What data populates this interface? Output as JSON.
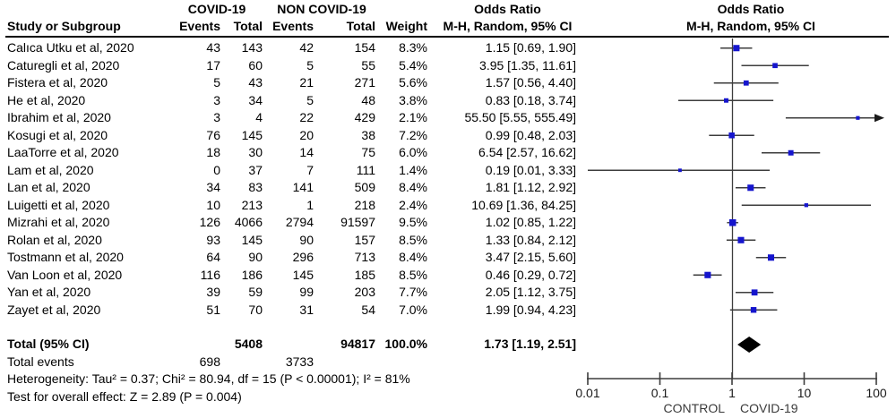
{
  "header": {
    "study_col": "Study or Subgroup",
    "group1": "COVID-19",
    "group2": "NON COVID-19",
    "events1": "Events",
    "total1": "Total",
    "events2": "Events",
    "total2": "Total",
    "weight": "Weight",
    "or_text_title": "Odds Ratio",
    "or_text_sub": "M-H, Random, 95% CI",
    "or_plot_title": "Odds Ratio",
    "or_plot_sub": "M-H, Random, 95% CI"
  },
  "chart_data": {
    "type": "forest",
    "x_scale": "log",
    "x_ticks": [
      0.01,
      0.1,
      1,
      10,
      100
    ],
    "x_axis_labels": {
      "left": "CONTROL",
      "right": "COVID-19"
    },
    "marker_color": "#1515cd",
    "line_color": "#3d3d3d",
    "studies": [
      {
        "study": "Calıca Utku et al, 2020",
        "e1": 43,
        "t1": 143,
        "e2": 42,
        "t2": 154,
        "weight": "8.3%",
        "weight_pct": 8.3,
        "or": 1.15,
        "lo": 0.69,
        "hi": 1.9,
        "or_label": "1.15 [0.69, 1.90]"
      },
      {
        "study": "Caturegli et al, 2020",
        "e1": 17,
        "t1": 60,
        "e2": 5,
        "t2": 55,
        "weight": "5.4%",
        "weight_pct": 5.4,
        "or": 3.95,
        "lo": 1.35,
        "hi": 11.61,
        "or_label": "3.95 [1.35, 11.61]"
      },
      {
        "study": "Fistera et al, 2020",
        "e1": 5,
        "t1": 43,
        "e2": 21,
        "t2": 271,
        "weight": "5.6%",
        "weight_pct": 5.6,
        "or": 1.57,
        "lo": 0.56,
        "hi": 4.4,
        "or_label": "1.57 [0.56, 4.40]"
      },
      {
        "study": "He et al, 2020",
        "e1": 3,
        "t1": 34,
        "e2": 5,
        "t2": 48,
        "weight": "3.8%",
        "weight_pct": 3.8,
        "or": 0.83,
        "lo": 0.18,
        "hi": 3.74,
        "or_label": "0.83 [0.18, 3.74]"
      },
      {
        "study": "Ibrahim et al, 2020",
        "e1": 3,
        "t1": 4,
        "e2": 22,
        "t2": 429,
        "weight": "2.1%",
        "weight_pct": 2.1,
        "or": 55.5,
        "lo": 5.55,
        "hi": 555.49,
        "or_label": "55.50 [5.55, 555.49]"
      },
      {
        "study": "Kosugi et al, 2020",
        "e1": 76,
        "t1": 145,
        "e2": 20,
        "t2": 38,
        "weight": "7.2%",
        "weight_pct": 7.2,
        "or": 0.99,
        "lo": 0.48,
        "hi": 2.03,
        "or_label": "0.99 [0.48, 2.03]"
      },
      {
        "study": "LaaTorre et al, 2020",
        "e1": 18,
        "t1": 30,
        "e2": 14,
        "t2": 75,
        "weight": "6.0%",
        "weight_pct": 6.0,
        "or": 6.54,
        "lo": 2.57,
        "hi": 16.62,
        "or_label": "6.54 [2.57, 16.62]"
      },
      {
        "study": "Lam et al, 2020",
        "e1": 0,
        "t1": 37,
        "e2": 7,
        "t2": 111,
        "weight": "1.4%",
        "weight_pct": 1.4,
        "or": 0.19,
        "lo": 0.01,
        "hi": 3.33,
        "or_label": "0.19 [0.01, 3.33]"
      },
      {
        "study": "Lan et al, 2020",
        "e1": 34,
        "t1": 83,
        "e2": 141,
        "t2": 509,
        "weight": "8.4%",
        "weight_pct": 8.4,
        "or": 1.81,
        "lo": 1.12,
        "hi": 2.92,
        "or_label": "1.81 [1.12, 2.92]"
      },
      {
        "study": "Luigetti et al, 2020",
        "e1": 10,
        "t1": 213,
        "e2": 1,
        "t2": 218,
        "weight": "2.4%",
        "weight_pct": 2.4,
        "or": 10.69,
        "lo": 1.36,
        "hi": 84.25,
        "or_label": "10.69 [1.36, 84.25]"
      },
      {
        "study": "Mizrahi et al, 2020",
        "e1": 126,
        "t1": 4066,
        "e2": 2794,
        "t2": 91597,
        "weight": "9.5%",
        "weight_pct": 9.5,
        "or": 1.02,
        "lo": 0.85,
        "hi": 1.22,
        "or_label": "1.02 [0.85, 1.22]"
      },
      {
        "study": "Rolan et al, 2020",
        "e1": 93,
        "t1": 145,
        "e2": 90,
        "t2": 157,
        "weight": "8.5%",
        "weight_pct": 8.5,
        "or": 1.33,
        "lo": 0.84,
        "hi": 2.12,
        "or_label": "1.33 [0.84, 2.12]"
      },
      {
        "study": "Tostmann et al, 2020",
        "e1": 64,
        "t1": 90,
        "e2": 296,
        "t2": 713,
        "weight": "8.4%",
        "weight_pct": 8.4,
        "or": 3.47,
        "lo": 2.15,
        "hi": 5.6,
        "or_label": "3.47 [2.15, 5.60]"
      },
      {
        "study": "Van Loon et al, 2020",
        "e1": 116,
        "t1": 186,
        "e2": 145,
        "t2": 185,
        "weight": "8.5%",
        "weight_pct": 8.5,
        "or": 0.46,
        "lo": 0.29,
        "hi": 0.72,
        "or_label": "0.46 [0.29, 0.72]"
      },
      {
        "study": "Yan et al, 2020",
        "e1": 39,
        "t1": 59,
        "e2": 99,
        "t2": 203,
        "weight": "7.7%",
        "weight_pct": 7.7,
        "or": 2.05,
        "lo": 1.12,
        "hi": 3.75,
        "or_label": "2.05 [1.12, 3.75]"
      },
      {
        "study": "Zayet et al, 2020",
        "e1": 51,
        "t1": 70,
        "e2": 31,
        "t2": 54,
        "weight": "7.0%",
        "weight_pct": 7.0,
        "or": 1.99,
        "lo": 0.94,
        "hi": 4.23,
        "or_label": "1.99 [0.94, 4.23]"
      }
    ],
    "total": {
      "label": "Total (95% CI)",
      "t1": 5408,
      "t2": 94817,
      "weight": "100.0%",
      "or": 1.73,
      "lo": 1.19,
      "hi": 2.51,
      "or_label": "1.73 [1.19, 2.51]"
    },
    "total_events": {
      "label": "Total events",
      "e1": 698,
      "e2": 3733
    },
    "heterogeneity": "Heterogeneity: Tau² = 0.37; Chi² = 80.94, df = 15 (P < 0.00001); I² = 81%",
    "overall_effect": "Test for overall effect: Z = 2.89 (P = 0.004)"
  }
}
